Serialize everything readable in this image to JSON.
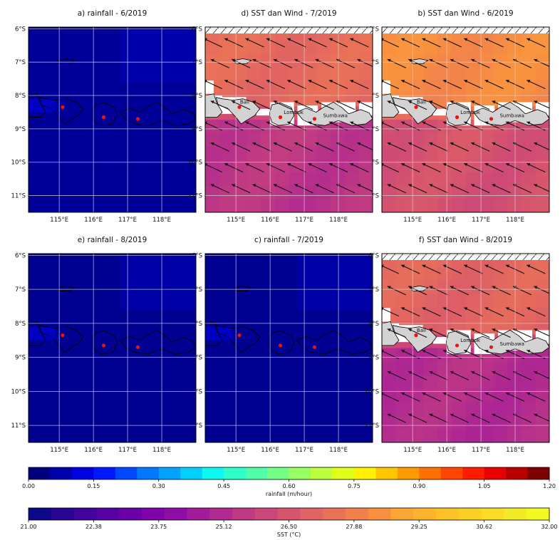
{
  "chart_data": [
    {
      "type": "heatmap",
      "title": "a) rainfall - 6/2019",
      "variable": "rainfall",
      "xlabels": [
        "115°E",
        "116°E",
        "117°E",
        "118°E"
      ],
      "ylabels": [
        "6°S",
        "7°S",
        "8°S",
        "9°S",
        "10°S",
        "11°S"
      ],
      "xlim": [
        114.1,
        119.0
      ],
      "ylim": [
        -11.5,
        -5.95
      ],
      "fill_value": 0.03,
      "field": "near-uniform low rainfall; slightly higher along island coasts and in the upper-right",
      "red_markers": [
        [
          115.1,
          -8.35
        ],
        [
          116.3,
          -8.65
        ],
        [
          117.3,
          -8.7
        ]
      ]
    },
    {
      "type": "heatmap",
      "title": "c) rainfall - 7/2019",
      "variable": "rainfall",
      "xlabels": [
        "115°E",
        "116°E",
        "117°E",
        "118°E"
      ],
      "ylabels": [
        "6°S",
        "7°S",
        "8°S",
        "9°S",
        "10°S",
        "11°S"
      ],
      "xlim": [
        114.1,
        119.0
      ],
      "ylim": [
        -11.5,
        -5.95
      ],
      "fill_value": 0.02,
      "field": "uniform low rainfall; small higher patch south-west of Bali",
      "red_markers": [
        [
          115.1,
          -8.35
        ],
        [
          116.3,
          -8.65
        ],
        [
          117.3,
          -8.7
        ]
      ]
    },
    {
      "type": "heatmap",
      "title": "e) rainfall - 8/2019",
      "variable": "rainfall",
      "xlabels": [
        "115°E",
        "116°E",
        "117°E",
        "118°E"
      ],
      "ylabels": [
        "6°S",
        "7°S",
        "8°S",
        "9°S",
        "10°S",
        "11°S"
      ],
      "xlim": [
        114.1,
        119.0
      ],
      "ylim": [
        -11.5,
        -5.95
      ],
      "fill_value": 0.02,
      "field": "uniform low rainfall",
      "red_markers": [
        [
          115.1,
          -8.35
        ],
        [
          116.3,
          -8.65
        ],
        [
          117.3,
          -8.7
        ]
      ]
    },
    {
      "type": "heatmap",
      "title": "b) SST dan Wind - 6/2019",
      "variable": "SST",
      "xlabels": [
        "115°E",
        "116°E",
        "117°E",
        "118°E"
      ],
      "ylabels": [
        "6°S",
        "7°S",
        "8°S",
        "9°S",
        "10°S",
        "11°S"
      ],
      "xlim": [
        114.1,
        119.0
      ],
      "ylim": [
        -11.5,
        -5.95
      ],
      "north_sst": 28.4,
      "south_sst": 26.6,
      "wind": "south-easterly trade winds, arrows pointing toward the north-west",
      "places": [
        "Bali",
        "Lombok",
        "Sumbawa"
      ],
      "red_markers": [
        [
          115.1,
          -8.35
        ],
        [
          116.3,
          -8.65
        ],
        [
          117.3,
          -8.7
        ]
      ]
    },
    {
      "type": "heatmap",
      "title": "d) SST dan Wind - 7/2019",
      "variable": "SST",
      "xlabels": [
        "115°E",
        "116°E",
        "117°E",
        "118°E"
      ],
      "ylabels": [
        "6°S",
        "7°S",
        "8°S",
        "9°S",
        "10°S",
        "11°S"
      ],
      "xlim": [
        114.1,
        119.0
      ],
      "ylim": [
        -11.5,
        -5.95
      ],
      "north_sst": 27.3,
      "south_sst": 25.6,
      "wind": "south-easterly trade winds, arrows pointing toward the north-west",
      "places": [
        "Bali",
        "Lombok",
        "Sumbawa"
      ],
      "red_markers": [
        [
          115.1,
          -8.35
        ],
        [
          116.3,
          -8.65
        ],
        [
          117.3,
          -8.7
        ]
      ]
    },
    {
      "type": "heatmap",
      "title": "f) SST dan Wind - 8/2019",
      "variable": "SST",
      "xlabels": [
        "115°E",
        "116°E",
        "117°E",
        "118°E"
      ],
      "ylabels": [
        "6°S",
        "7°S",
        "8°S",
        "9°S",
        "10°S",
        "11°S"
      ],
      "xlim": [
        114.1,
        119.0
      ],
      "ylim": [
        -11.5,
        -5.95
      ],
      "north_sst": 27.1,
      "south_sst": 25.3,
      "wind": "south-easterly trade winds, arrows pointing toward the north-west",
      "places": [
        "Bali",
        "Lombok",
        "Sumbawa"
      ],
      "red_markers": [
        [
          115.1,
          -8.35
        ],
        [
          116.3,
          -8.65
        ],
        [
          117.3,
          -8.7
        ]
      ]
    }
  ],
  "colorbars": [
    {
      "label": "rainfall (m/hour)",
      "ticks": [
        "0.00",
        "0.15",
        "0.30",
        "0.45",
        "0.60",
        "0.75",
        "0.90",
        "1.05",
        "1.20"
      ],
      "colors": [
        "#00007f",
        "#0000ad",
        "#0000e0",
        "#0018ff",
        "#0048ff",
        "#0078ff",
        "#00a4ff",
        "#00d0ff",
        "#0ff7f0",
        "#2cffca",
        "#4fffa7",
        "#73ff83",
        "#97ff60",
        "#bcff3c",
        "#e0ff18",
        "#fff100",
        "#ffc600",
        "#ff9b00",
        "#ff7000",
        "#ff4500",
        "#ff1c00",
        "#e70000",
        "#b80000",
        "#7f0000"
      ]
    },
    {
      "label": "SST (°C)",
      "ticks": [
        "21.00",
        "22.38",
        "23.75",
        "25.12",
        "26.50",
        "27.88",
        "29.25",
        "30.62",
        "32.00"
      ],
      "colors": [
        "#0d0887",
        "#2a0593",
        "#41049d",
        "#5601a4",
        "#6a00a8",
        "#7e03a8",
        "#8f0da4",
        "#a11b9b",
        "#b12a90",
        "#bf3984",
        "#cb4679",
        "#d6556d",
        "#e16462",
        "#e97158",
        "#f1804d",
        "#f89040",
        "#fca636",
        "#fdb42f",
        "#fec229",
        "#fccf25",
        "#f9dc24",
        "#f3eb27",
        "#f0f921"
      ]
    }
  ]
}
